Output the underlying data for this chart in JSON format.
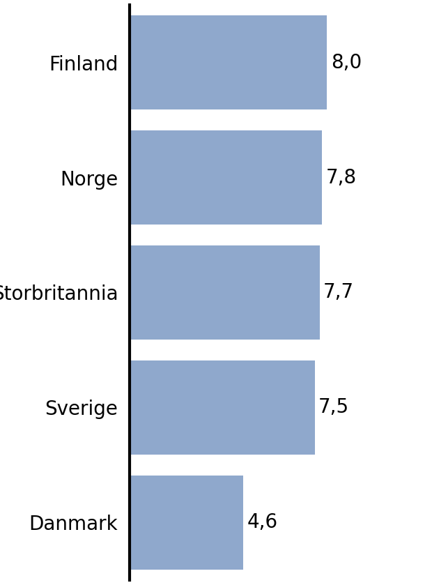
{
  "categories": [
    "Danmark",
    "Sverige",
    "Storbritannia",
    "Norge",
    "Finland"
  ],
  "values": [
    4.6,
    7.5,
    7.7,
    7.8,
    8.0
  ],
  "labels": [
    "4,6",
    "7,5",
    "7,7",
    "7,8",
    "8,0"
  ],
  "bar_color": "#8fa8cc",
  "background_color": "#ffffff",
  "text_color": "#000000",
  "bar_label_fontsize": 20,
  "ytick_fontsize": 20,
  "spine_color": "#000000",
  "xlim": [
    0,
    9.8
  ],
  "bar_height": 0.82
}
